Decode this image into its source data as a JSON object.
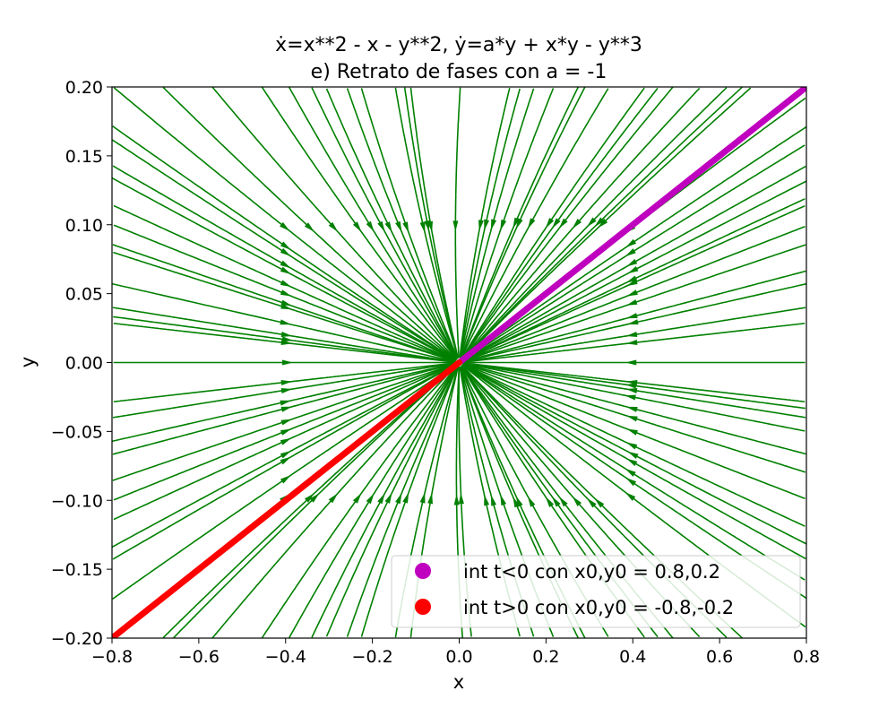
{
  "chart_data": {
    "type": "streamplot",
    "title_line1": "ẋ=x**2 - x - y**2, ẏ=a*y + x*y - y**3",
    "title_line2": "e) Retrato de fases con a = -1",
    "xlabel": "x",
    "ylabel": "y",
    "xlim": [
      -0.8,
      0.8
    ],
    "ylim": [
      -0.2,
      0.2
    ],
    "xticks": [
      -0.8,
      -0.6,
      -0.4,
      -0.2,
      0.0,
      0.2,
      0.4,
      0.6,
      0.8
    ],
    "xtick_labels": [
      "−0.8",
      "−0.6",
      "−0.4",
      "−0.2",
      "0.0",
      "0.2",
      "0.4",
      "0.6",
      "0.8"
    ],
    "yticks": [
      -0.2,
      -0.15,
      -0.1,
      -0.05,
      0.0,
      0.05,
      0.1,
      0.15,
      0.2
    ],
    "ytick_labels": [
      "−0.20",
      "−0.15",
      "−0.10",
      "−0.05",
      "0.00",
      "0.05",
      "0.10",
      "0.15",
      "0.20"
    ],
    "a": -1,
    "streamline_color": "#008000",
    "series": [
      {
        "name": "int t<0 con x0,y0 = 0.8,0.2",
        "color": "#bf00bf",
        "x": [
          0.0,
          0.1,
          0.2,
          0.3,
          0.4,
          0.5,
          0.6,
          0.7,
          0.8
        ],
        "y": [
          0.0,
          0.025,
          0.05,
          0.075,
          0.1,
          0.125,
          0.15,
          0.175,
          0.2
        ]
      },
      {
        "name": "int t>0 con x0,y0 = -0.8,-0.2",
        "color": "#ff0000",
        "x": [
          -0.8,
          -0.7,
          -0.6,
          -0.5,
          -0.4,
          -0.3,
          -0.2,
          -0.1,
          0.0
        ],
        "y": [
          -0.2,
          -0.175,
          -0.15,
          -0.125,
          -0.1,
          -0.075,
          -0.05,
          -0.025,
          0.0
        ]
      }
    ],
    "legend": {
      "position": "lower right",
      "entries": [
        "int t<0 con x0,y0 = 0.8,0.2",
        "int t>0 con x0,y0 = -0.8,-0.2"
      ]
    },
    "grid": false
  }
}
